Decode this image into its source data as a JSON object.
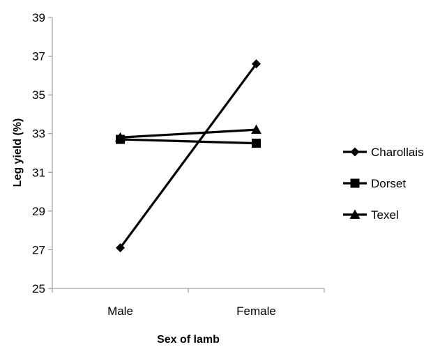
{
  "chart_data": {
    "type": "line",
    "title": "",
    "xlabel": "Sex of lamb",
    "ylabel": "Leg yield (%)",
    "categories": [
      "Male",
      "Female"
    ],
    "ylim": [
      25,
      39
    ],
    "yticks": [
      25,
      27,
      29,
      31,
      33,
      35,
      37,
      39
    ],
    "grid": false,
    "legend_position": "right",
    "series": [
      {
        "name": "Charollais",
        "marker": "diamond",
        "color": "#000000",
        "values": [
          27.1,
          36.6
        ]
      },
      {
        "name": "Dorset",
        "marker": "square",
        "color": "#000000",
        "values": [
          32.7,
          32.5
        ]
      },
      {
        "name": "Texel",
        "marker": "triangle",
        "color": "#000000",
        "values": [
          32.8,
          33.2
        ]
      }
    ]
  }
}
